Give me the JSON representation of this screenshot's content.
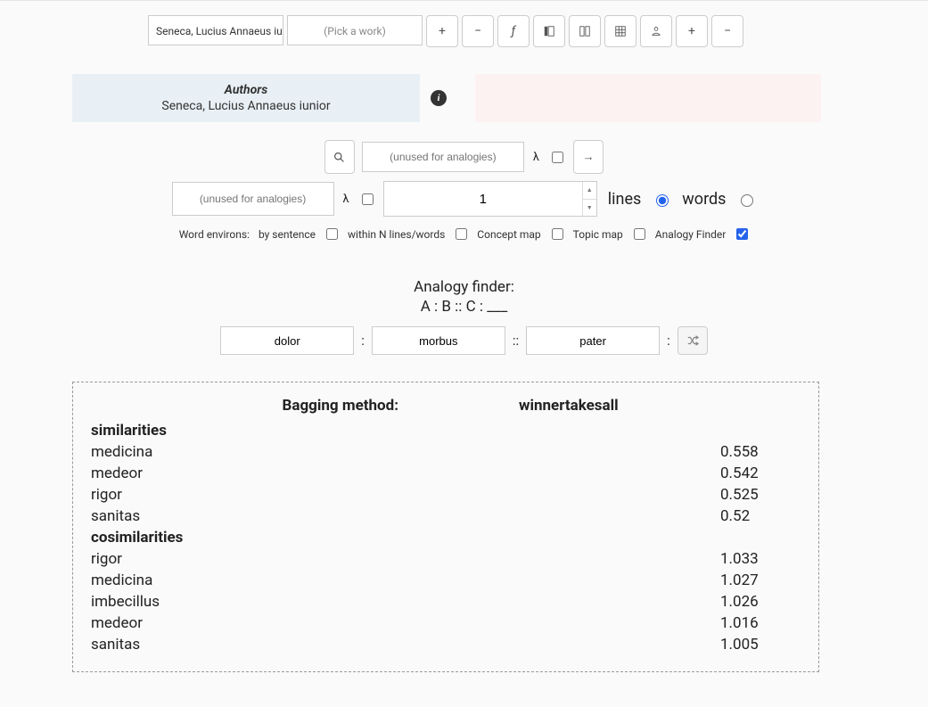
{
  "topbar": {
    "author_value": "Seneca, Lucius Annaeus iu",
    "work_placeholder": "(Pick a work)"
  },
  "authors_panel": {
    "header": "Authors",
    "value": "Seneca, Lucius Annaeus iunior"
  },
  "search": {
    "unused_placeholder": "(unused for analogies)",
    "lambda_label": "λ",
    "number_value": "1",
    "lines_label": "lines",
    "words_label": "words"
  },
  "options": {
    "prefix": "Word environs:",
    "by_sentence": "by sentence",
    "within_n": "within N lines/words",
    "concept_map": "Concept map",
    "topic_map": "Topic map",
    "analogy_finder": "Analogy Finder"
  },
  "analogy": {
    "title": "Analogy finder:",
    "pattern": "A : B :: C : ___",
    "a": "dolor",
    "b": "morbus",
    "c": "pater",
    "sep_colon": ":",
    "sep_double": "::"
  },
  "results": {
    "method_label": "Bagging method:",
    "method_value": "winnertakesall",
    "similarities_label": "similarities",
    "cosimilarities_label": "cosimilarities",
    "similarities": [
      {
        "term": "medicina",
        "score": "0.558"
      },
      {
        "term": "medeor",
        "score": "0.542"
      },
      {
        "term": "rigor",
        "score": "0.525"
      },
      {
        "term": "sanitas",
        "score": "0.52"
      }
    ],
    "cosimilarities": [
      {
        "term": "rigor",
        "score": "1.033"
      },
      {
        "term": "medicina",
        "score": "1.027"
      },
      {
        "term": "imbecillus",
        "score": "1.026"
      },
      {
        "term": "medeor",
        "score": "1.016"
      },
      {
        "term": "sanitas",
        "score": "1.005"
      }
    ]
  }
}
